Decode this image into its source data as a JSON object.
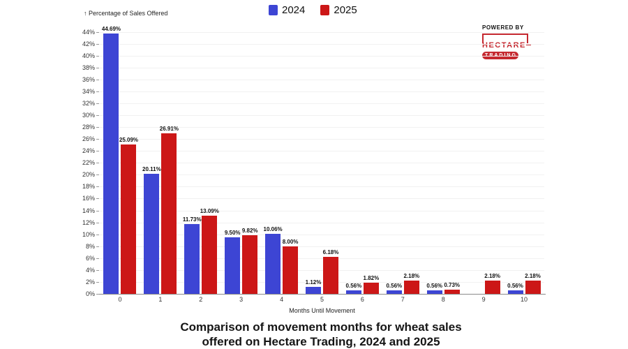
{
  "page": {
    "background": "#ffffff"
  },
  "legend": {
    "items": [
      {
        "label": "2024",
        "color": "#3d45d4"
      },
      {
        "label": "2025",
        "color": "#cc1717"
      }
    ]
  },
  "logo": {
    "powered_by": "POWERED BY",
    "brand": "HECTARE",
    "sub_brand": "TRADING",
    "brand_color": "#c5282f"
  },
  "chart_data": {
    "type": "bar",
    "title": "Comparison of movement months for wheat sales offered on Hectare Trading, 2024 and 2025",
    "title_lines": [
      "Comparison of movement months for wheat sales",
      "offered on Hectare Trading, 2024 and 2025"
    ],
    "xlabel": "Months Until Movement",
    "ylabel": "↑ Percentage of Sales Offered",
    "categories": [
      "0",
      "1",
      "2",
      "3",
      "4",
      "5",
      "6",
      "7",
      "8",
      "9",
      "10"
    ],
    "series": [
      {
        "name": "2024",
        "color": "#3d45d4",
        "values": [
          44.69,
          20.11,
          11.73,
          9.5,
          10.06,
          1.12,
          0.56,
          0.56,
          0.56,
          0,
          0.56
        ],
        "labels": [
          "44.69%",
          "20.11%",
          "11.73%",
          "9.50%",
          "10.06%",
          "1.12%",
          "0.56%",
          "0.56%",
          "0.56%",
          "",
          "0.56%"
        ]
      },
      {
        "name": "2025",
        "color": "#cc1717",
        "values": [
          25.09,
          26.91,
          13.09,
          9.82,
          8.0,
          6.18,
          1.82,
          2.18,
          0.73,
          2.18,
          2.18
        ],
        "labels": [
          "25.09%",
          "26.91%",
          "13.09%",
          "9.82%",
          "8.00%",
          "6.18%",
          "1.82%",
          "2.18%",
          "0.73%",
          "2.18%",
          "2.18%"
        ]
      }
    ],
    "ylim": [
      0,
      45
    ],
    "ytick_values": [
      0,
      2,
      4,
      6,
      8,
      10,
      12,
      14,
      16,
      18,
      20,
      22,
      24,
      26,
      28,
      30,
      32,
      34,
      36,
      38,
      40,
      42,
      44
    ],
    "ytick_labels": [
      "0%",
      "2%",
      "4%",
      "6%",
      "8%",
      "10%",
      "12%",
      "14%",
      "16%",
      "18%",
      "20%",
      "22%",
      "24%",
      "26%",
      "28%",
      "30%",
      "32%",
      "34%",
      "36%",
      "38%",
      "40%",
      "42%",
      "44%"
    ],
    "grid": true,
    "legend_position": "top-center"
  }
}
